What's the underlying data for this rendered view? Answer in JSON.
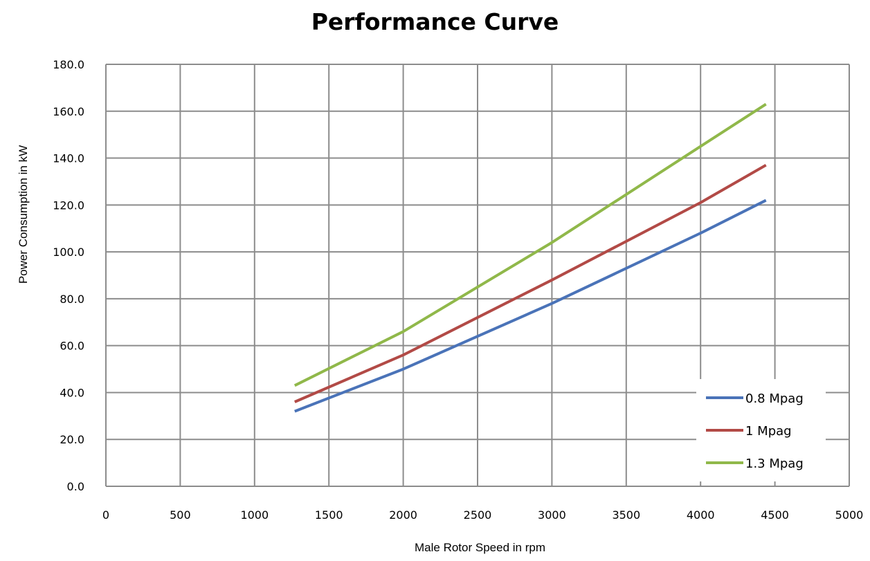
{
  "chart_data": {
    "type": "line",
    "title": "Performance Curve",
    "xlabel": "Male Rotor Speed in rpm",
    "ylabel": "Power Consumption in kW",
    "xlim": [
      0,
      5000
    ],
    "ylim": [
      0,
      180
    ],
    "x_ticks": [
      "0",
      "500",
      "1000",
      "1500",
      "2000",
      "2500",
      "3000",
      "3500",
      "4000",
      "4500",
      "5000"
    ],
    "y_ticks": [
      "0.0",
      "20.0",
      "40.0",
      "60.0",
      "80.0",
      "100.0",
      "120.0",
      "140.0",
      "160.0",
      "180.0"
    ],
    "grid": true,
    "legend_position": "bottom-right",
    "series": [
      {
        "name": "0.8 Mpag",
        "color": "#4a73b8",
        "x": [
          1270,
          2000,
          3000,
          4000,
          4440
        ],
        "y": [
          32,
          50,
          78,
          108,
          122
        ]
      },
      {
        "name": "1 Mpag",
        "color": "#b24a46",
        "x": [
          1270,
          2000,
          3000,
          4000,
          4440
        ],
        "y": [
          36,
          56,
          88,
          121,
          137
        ]
      },
      {
        "name": "1.3 Mpag",
        "color": "#90b84a",
        "x": [
          1270,
          2000,
          3000,
          4000,
          4440
        ],
        "y": [
          43,
          66,
          104,
          145,
          163
        ]
      }
    ]
  }
}
